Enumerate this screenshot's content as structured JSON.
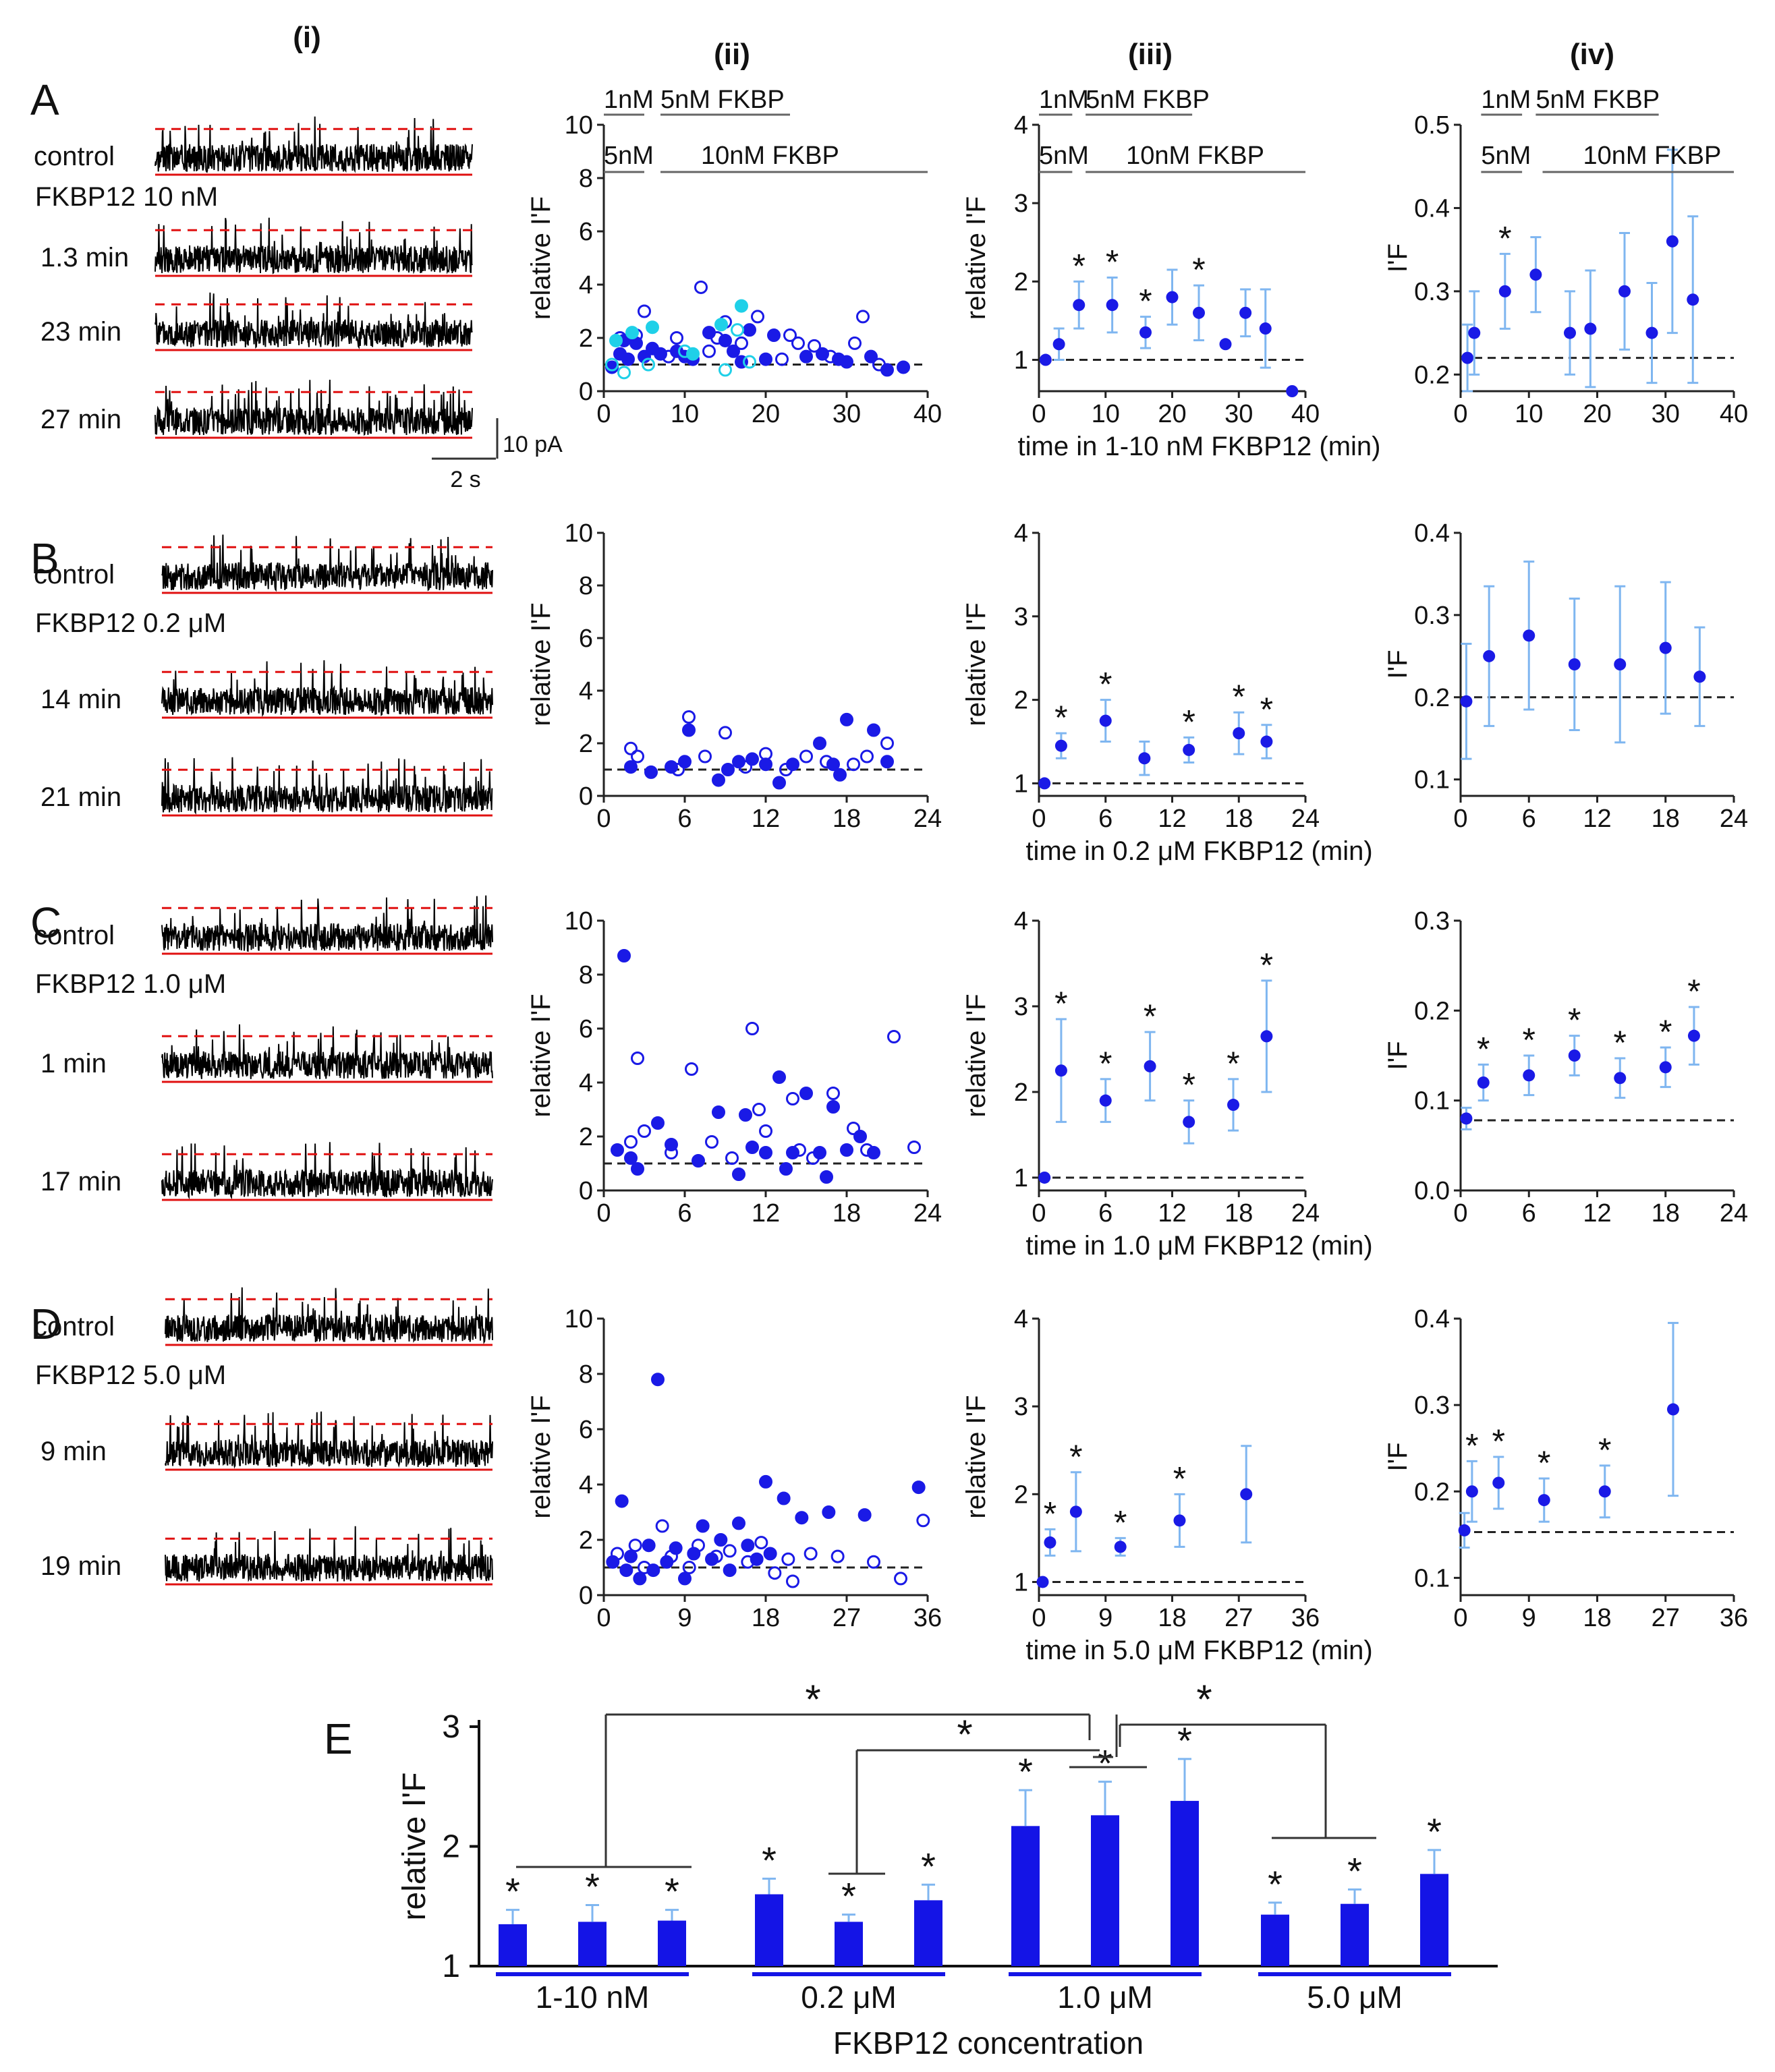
{
  "figure": {
    "column_labels": [
      "(i)",
      "(ii)",
      "(iii)",
      "(iv)"
    ],
    "scale_bar": {
      "current": "10 pA",
      "time": "2 s"
    },
    "ylabels": {
      "relative": "relative I'F",
      "absolute": "I'F"
    }
  },
  "rows": [
    {
      "letter": "A",
      "traces": [
        {
          "label": "control"
        },
        {
          "label": "1.3 min"
        },
        {
          "label": "23 min"
        },
        {
          "label": "27 min"
        }
      ],
      "condition": "FKBP12  10 nM",
      "xlabel": "time in 1-10 nM FKBP12 (min)",
      "bars_top": [
        {
          "text": "1nM",
          "x0": 0,
          "x1": 5
        },
        {
          "text": "5nM FKBP",
          "x0": 7,
          "x1": 23
        }
      ],
      "bars_bottom": [
        {
          "text": "5nM",
          "x0": 0,
          "x1": 5
        },
        {
          "text": "10nM FKBP",
          "x0": 7,
          "x1": 40
        }
      ],
      "bars_iv_top": [
        {
          "text": "1nM",
          "x0": 3,
          "x1": 9
        },
        {
          "text": "5nM FKBP",
          "x0": 11,
          "x1": 29
        }
      ],
      "bars_iv_bottom": [
        {
          "text": "5nM",
          "x0": 3,
          "x1": 9
        },
        {
          "text": "10nM FKBP",
          "x0": 12,
          "x1": 40
        }
      ]
    },
    {
      "letter": "B",
      "traces": [
        {
          "label": "control"
        },
        {
          "label": "14 min"
        },
        {
          "label": "21 min"
        }
      ],
      "condition": "FKBP12  0.2 μM",
      "xlabel": "time in 0.2 μM FKBP12 (min)"
    },
    {
      "letter": "C",
      "traces": [
        {
          "label": "control"
        },
        {
          "label": "1 min"
        },
        {
          "label": "17 min"
        }
      ],
      "condition": "FKBP12 1.0 μM",
      "xlabel": "time in 1.0 μM FKBP12 (min)"
    },
    {
      "letter": "D",
      "traces": [
        {
          "label": "control"
        },
        {
          "label": "9 min"
        },
        {
          "label": "19 min"
        }
      ],
      "condition": "FKBP12 5.0 μM",
      "xlabel": "time in 5.0 μM FKBP12 (min)"
    }
  ],
  "chart_data": [
    {
      "id": "A-ii",
      "type": "scatter",
      "xlim": [
        0,
        40
      ],
      "ylim": [
        0,
        10
      ],
      "xticks": [
        0,
        10,
        20,
        30,
        40
      ],
      "yticks": [
        0,
        2,
        4,
        6,
        8,
        10
      ],
      "ylabel": "relative I'F",
      "reference_y": 1,
      "series": [
        {
          "style": "filled",
          "color": "#1a1ae6",
          "x": [
            1,
            2,
            2.5,
            3,
            4,
            5,
            6,
            7,
            9,
            10,
            11,
            13,
            15,
            16,
            17,
            18,
            20,
            21,
            25,
            27,
            29,
            30,
            33,
            35,
            37
          ],
          "y": [
            0.9,
            1.4,
            1.9,
            1.2,
            1.8,
            1.3,
            1.6,
            1.4,
            1.5,
            1.3,
            1.2,
            2.2,
            1.9,
            1.5,
            1.1,
            2.3,
            1.2,
            2.1,
            1.3,
            1.4,
            1.2,
            1.1,
            1.3,
            0.8,
            0.9
          ]
        },
        {
          "style": "open",
          "color": "#1a1ae6",
          "x": [
            2,
            4,
            5,
            8,
            9,
            12,
            13,
            14,
            15,
            17,
            19,
            22,
            23,
            24,
            26,
            28,
            31,
            32,
            34
          ],
          "y": [
            2.0,
            2.1,
            3.0,
            1.3,
            2.0,
            3.9,
            1.5,
            2.0,
            2.6,
            1.8,
            2.8,
            1.2,
            2.1,
            1.8,
            1.7,
            1.3,
            1.8,
            2.8,
            1.0
          ]
        },
        {
          "style": "filled",
          "color": "#1fd0e8",
          "x": [
            1.5,
            3.5,
            6,
            11,
            14.5,
            17
          ],
          "y": [
            1.9,
            2.2,
            2.4,
            1.4,
            2.5,
            3.2
          ]
        },
        {
          "style": "open",
          "color": "#1fd0e8",
          "x": [
            1,
            2.5,
            5.5,
            10,
            15,
            16.5,
            18
          ],
          "y": [
            1.0,
            0.7,
            1.0,
            1.5,
            0.8,
            2.3,
            1.1
          ]
        }
      ]
    },
    {
      "id": "A-iii",
      "type": "scatter",
      "xlim": [
        0,
        40
      ],
      "ylim": [
        0.6,
        4
      ],
      "xticks": [
        0,
        10,
        20,
        30,
        40
      ],
      "yticks": [
        1,
        2,
        3,
        4
      ],
      "ylabel": "relative I'F",
      "reference_y": 1,
      "x": [
        1,
        3,
        6,
        11,
        16,
        20,
        24,
        28,
        31,
        34,
        38
      ],
      "y": [
        1.0,
        1.2,
        1.7,
        1.7,
        1.35,
        1.8,
        1.6,
        1.2,
        1.6,
        1.4,
        0.6
      ],
      "err": [
        0,
        0.2,
        0.3,
        0.35,
        0.2,
        0.35,
        0.35,
        0,
        0.3,
        0.5,
        0
      ],
      "significant": [
        false,
        false,
        true,
        true,
        true,
        false,
        true,
        false,
        false,
        false,
        false
      ]
    },
    {
      "id": "A-iv",
      "type": "scatter",
      "xlim": [
        0,
        40
      ],
      "ylim": [
        0.18,
        0.5
      ],
      "xticks": [
        0,
        10,
        20,
        30,
        40
      ],
      "yticks": [
        0.2,
        0.3,
        0.4,
        0.5
      ],
      "ylabel": "I'F",
      "reference_y": 0.22,
      "x": [
        1,
        2,
        6.5,
        11,
        16,
        19,
        24,
        28,
        31,
        34
      ],
      "y": [
        0.22,
        0.25,
        0.3,
        0.32,
        0.25,
        0.255,
        0.3,
        0.25,
        0.36,
        0.29
      ],
      "err": [
        0.04,
        0.05,
        0.045,
        0.045,
        0.05,
        0.07,
        0.07,
        0.06,
        0.11,
        0.1
      ],
      "significant": [
        false,
        false,
        true,
        false,
        false,
        false,
        false,
        false,
        false,
        false
      ]
    },
    {
      "id": "B-ii",
      "type": "scatter",
      "xlim": [
        0,
        24
      ],
      "ylim": [
        0,
        10
      ],
      "xticks": [
        0,
        6,
        12,
        18,
        24
      ],
      "yticks": [
        0,
        2,
        4,
        6,
        8,
        10
      ],
      "ylabel": "relative I'F",
      "reference_y": 1,
      "series": [
        {
          "style": "filled",
          "color": "#1a1ae6",
          "x": [
            2,
            3.5,
            5,
            6,
            6.3,
            8.5,
            9.2,
            10,
            11,
            12,
            13,
            14,
            16,
            17,
            17.5,
            18,
            20,
            21
          ],
          "y": [
            1.1,
            0.9,
            1.1,
            1.3,
            2.5,
            0.6,
            1.0,
            1.3,
            1.4,
            1.2,
            0.5,
            1.2,
            2.0,
            1.2,
            0.8,
            2.9,
            2.5,
            1.3
          ]
        },
        {
          "style": "open",
          "color": "#1a1ae6",
          "x": [
            2,
            2.5,
            5.5,
            6.3,
            7.5,
            9,
            10.5,
            12,
            13.5,
            15,
            16.5,
            18.5,
            19.5,
            21
          ],
          "y": [
            1.8,
            1.5,
            1.0,
            3.0,
            1.5,
            2.4,
            1.1,
            1.6,
            1.0,
            1.5,
            1.3,
            1.2,
            1.5,
            2.0
          ]
        }
      ]
    },
    {
      "id": "B-iii",
      "type": "scatter",
      "xlim": [
        0,
        24
      ],
      "ylim": [
        0.85,
        4
      ],
      "xticks": [
        0,
        6,
        12,
        18,
        24
      ],
      "yticks": [
        1,
        2,
        3,
        4
      ],
      "ylabel": "relative I'F",
      "reference_y": 1,
      "x": [
        0.5,
        2,
        6,
        9.5,
        13.5,
        18,
        20.5
      ],
      "y": [
        1.0,
        1.45,
        1.75,
        1.3,
        1.4,
        1.6,
        1.5
      ],
      "err": [
        0,
        0.15,
        0.25,
        0.2,
        0.15,
        0.25,
        0.2
      ],
      "significant": [
        false,
        true,
        true,
        false,
        true,
        true,
        true
      ]
    },
    {
      "id": "B-iv",
      "type": "scatter",
      "xlim": [
        0,
        24
      ],
      "ylim": [
        0.08,
        0.4
      ],
      "xticks": [
        0,
        6,
        12,
        18,
        24
      ],
      "yticks": [
        0.1,
        0.2,
        0.3,
        0.4
      ],
      "ylabel": "I'F",
      "reference_y": 0.2,
      "x": [
        0.5,
        2.5,
        6,
        10,
        14,
        18,
        21
      ],
      "y": [
        0.195,
        0.25,
        0.275,
        0.24,
        0.24,
        0.26,
        0.225
      ],
      "err": [
        0.07,
        0.085,
        0.09,
        0.08,
        0.095,
        0.08,
        0.06
      ],
      "significant": [
        false,
        false,
        false,
        false,
        false,
        false,
        false
      ]
    },
    {
      "id": "C-ii",
      "type": "scatter",
      "xlim": [
        0,
        24
      ],
      "ylim": [
        0,
        10
      ],
      "xticks": [
        0,
        6,
        12,
        18,
        24
      ],
      "yticks": [
        0,
        2,
        4,
        6,
        8,
        10
      ],
      "ylabel": "relative I'F",
      "reference_y": 1,
      "series": [
        {
          "style": "filled",
          "color": "#1a1ae6",
          "x": [
            1,
            1.5,
            2,
            2.5,
            4,
            5,
            7,
            8.5,
            10,
            10.5,
            11,
            12,
            13,
            13.5,
            14,
            15,
            16,
            16.5,
            17,
            18,
            19,
            20
          ],
          "y": [
            1.5,
            8.7,
            1.2,
            0.8,
            2.5,
            1.7,
            1.1,
            2.9,
            0.6,
            2.8,
            1.6,
            1.4,
            4.2,
            0.8,
            1.4,
            3.6,
            1.4,
            0.5,
            3.1,
            1.5,
            2.0,
            1.4
          ]
        },
        {
          "style": "open",
          "color": "#1a1ae6",
          "x": [
            2,
            2.5,
            3,
            5,
            6.5,
            8,
            9.5,
            11,
            11.5,
            12,
            14,
            14.5,
            15.5,
            17,
            18.5,
            19.5,
            21.5,
            23
          ],
          "y": [
            1.8,
            4.9,
            2.2,
            1.4,
            4.5,
            1.8,
            1.2,
            6.0,
            3.0,
            2.2,
            3.4,
            1.5,
            1.2,
            3.6,
            2.3,
            1.5,
            5.7,
            1.6
          ]
        }
      ]
    },
    {
      "id": "C-iii",
      "type": "scatter",
      "xlim": [
        0,
        24
      ],
      "ylim": [
        0.85,
        4
      ],
      "xticks": [
        0,
        6,
        12,
        18,
        24
      ],
      "yticks": [
        1,
        2,
        3,
        4
      ],
      "ylabel": "relative I'F",
      "reference_y": 1,
      "x": [
        0.5,
        2,
        6,
        10,
        13.5,
        17.5,
        20.5
      ],
      "y": [
        1.0,
        2.25,
        1.9,
        2.3,
        1.65,
        1.85,
        2.65
      ],
      "err": [
        0,
        0.6,
        0.25,
        0.4,
        0.25,
        0.3,
        0.65
      ],
      "significant": [
        false,
        true,
        true,
        true,
        true,
        true,
        true
      ]
    },
    {
      "id": "C-iv",
      "type": "scatter",
      "xlim": [
        0,
        24
      ],
      "ylim": [
        0,
        0.3
      ],
      "xticks": [
        0,
        6,
        12,
        18,
        24
      ],
      "yticks": [
        0.0,
        0.1,
        0.2,
        0.3
      ],
      "ylabel": "I'F",
      "reference_y": 0.078,
      "x": [
        0.5,
        2,
        6,
        10,
        14,
        18,
        20.5
      ],
      "y": [
        0.08,
        0.12,
        0.128,
        0.15,
        0.125,
        0.137,
        0.172
      ],
      "err": [
        0.012,
        0.02,
        0.022,
        0.022,
        0.022,
        0.022,
        0.032
      ],
      "significant": [
        false,
        true,
        true,
        true,
        true,
        true,
        true
      ]
    },
    {
      "id": "D-ii",
      "type": "scatter",
      "xlim": [
        0,
        36
      ],
      "ylim": [
        0,
        10
      ],
      "xticks": [
        0,
        9,
        18,
        27,
        36
      ],
      "yticks": [
        0,
        2,
        4,
        6,
        8,
        10
      ],
      "ylabel": "relative I'F",
      "reference_y": 1,
      "series": [
        {
          "style": "filled",
          "color": "#1a1ae6",
          "x": [
            1,
            2,
            2.5,
            3,
            4,
            5,
            5.5,
            6,
            7,
            8,
            9,
            10,
            11,
            12,
            13,
            14,
            15,
            16,
            17,
            18,
            18.5,
            20,
            22,
            25,
            29,
            35
          ],
          "y": [
            1.2,
            3.4,
            0.9,
            1.4,
            0.6,
            1.8,
            0.9,
            7.8,
            1.2,
            1.7,
            0.6,
            1.5,
            2.5,
            1.3,
            2.0,
            0.9,
            2.6,
            1.8,
            1.3,
            4.1,
            1.5,
            3.5,
            2.8,
            3.0,
            2.9,
            3.9
          ]
        },
        {
          "style": "open",
          "color": "#1a1ae6",
          "x": [
            1.5,
            3.5,
            4.5,
            6.5,
            7.5,
            9.5,
            10.5,
            12.5,
            14,
            16,
            17.5,
            19,
            20.5,
            21,
            23,
            26,
            30,
            33,
            35.5
          ],
          "y": [
            1.5,
            1.8,
            1.0,
            2.5,
            1.4,
            1.0,
            1.8,
            1.4,
            1.6,
            1.2,
            1.9,
            0.8,
            1.3,
            0.5,
            1.5,
            1.4,
            1.2,
            0.6,
            2.7
          ]
        }
      ]
    },
    {
      "id": "D-iii",
      "type": "scatter",
      "xlim": [
        0,
        36
      ],
      "ylim": [
        0.85,
        4
      ],
      "xticks": [
        0,
        9,
        18,
        27,
        36
      ],
      "yticks": [
        1,
        2,
        3,
        4
      ],
      "ylabel": "relative I'F",
      "reference_y": 1,
      "x": [
        0.5,
        1.5,
        5,
        11,
        19,
        28
      ],
      "y": [
        1.0,
        1.45,
        1.8,
        1.4,
        1.7,
        2.0
      ],
      "err": [
        0,
        0.15,
        0.45,
        0.1,
        0.3,
        0.55
      ],
      "significant": [
        false,
        true,
        true,
        true,
        true,
        false
      ]
    },
    {
      "id": "D-iv",
      "type": "scatter",
      "xlim": [
        0,
        36
      ],
      "ylim": [
        0.08,
        0.4
      ],
      "xticks": [
        0,
        9,
        18,
        27,
        36
      ],
      "yticks": [
        0.1,
        0.2,
        0.3,
        0.4
      ],
      "ylabel": "I'F",
      "reference_y": 0.153,
      "x": [
        0.5,
        1.5,
        5,
        11,
        19,
        28
      ],
      "y": [
        0.155,
        0.2,
        0.21,
        0.19,
        0.2,
        0.295
      ],
      "err": [
        0.02,
        0.035,
        0.03,
        0.025,
        0.03,
        0.1
      ],
      "significant": [
        false,
        true,
        true,
        true,
        true,
        false
      ]
    },
    {
      "id": "E",
      "type": "bar",
      "letter": "E",
      "ylabel": "relative I'F",
      "xlabel": "FKBP12 concentration",
      "ylim": [
        1,
        3
      ],
      "yticks": [
        1,
        2,
        3
      ],
      "groups": [
        "1-10 nM",
        "0.2 μM",
        "1.0 μM",
        "5.0 μM"
      ],
      "values": [
        [
          1.35,
          1.37,
          1.38
        ],
        [
          1.6,
          1.37,
          1.55
        ],
        [
          2.17,
          2.26,
          2.38
        ],
        [
          1.43,
          1.52,
          1.77
        ]
      ],
      "err": [
        [
          0.12,
          0.14,
          0.09
        ],
        [
          0.13,
          0.06,
          0.13
        ],
        [
          0.3,
          0.28,
          0.35
        ],
        [
          0.1,
          0.12,
          0.2
        ]
      ],
      "significant_marker": "*",
      "brackets_marker": "*"
    }
  ]
}
